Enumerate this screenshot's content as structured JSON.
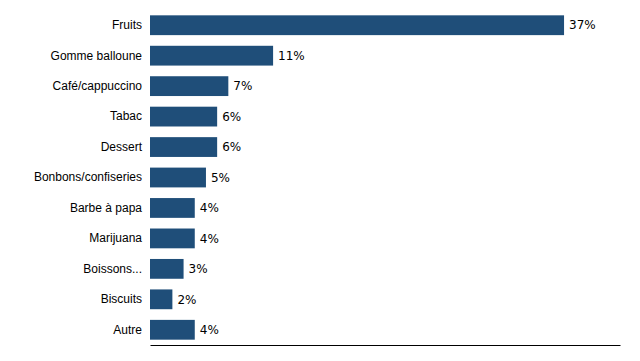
{
  "chart_data": {
    "type": "bar",
    "orientation": "horizontal",
    "categories": [
      "Fruits",
      "Gomme balloune",
      "Café/cappuccino",
      "Tabac",
      "Dessert",
      "Bonbons/confiseries",
      "Barbe à papa",
      "Marijuana",
      "Boissons...",
      "Biscuits",
      "Autre"
    ],
    "values": [
      37,
      11,
      7,
      6,
      6,
      5,
      4,
      4,
      3,
      2,
      4
    ],
    "value_labels": [
      "37%",
      "11%",
      "7%",
      "6%",
      "6%",
      "5%",
      "4%",
      "4%",
      "3%",
      "2%",
      "4%"
    ],
    "data_labels": true,
    "color": "#1f4e79",
    "xlim": [
      0,
      42
    ],
    "grid": false,
    "tick_labels": "y"
  }
}
